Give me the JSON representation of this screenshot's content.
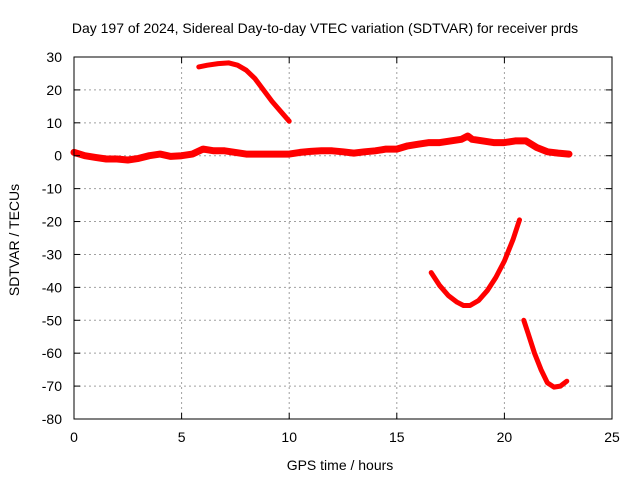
{
  "chart_data": {
    "type": "line",
    "title": "Day 197 of 2024, Sidereal Day-to-day VTEC variation (SDTVAR) for receiver prds",
    "xlabel": "GPS time / hours",
    "ylabel": "SDTVAR / TECUs",
    "xlim": [
      0,
      25
    ],
    "ylim": [
      -80,
      30
    ],
    "xticks": [
      0,
      5,
      10,
      15,
      20,
      25
    ],
    "yticks": [
      30,
      20,
      10,
      0,
      -10,
      -20,
      -30,
      -40,
      -50,
      -60,
      -70,
      -80
    ],
    "grid": true,
    "series": [
      {
        "name": "main-track",
        "color": "#ff0000",
        "x": [
          0,
          0.5,
          1,
          1.5,
          2,
          2.5,
          3,
          3.5,
          4,
          4.5,
          5,
          5.5,
          6,
          6.5,
          7,
          7.5,
          8,
          8.5,
          9,
          9.5,
          10,
          10.5,
          11,
          11.5,
          12,
          12.5,
          13,
          13.5,
          14,
          14.5,
          15,
          15.5,
          16,
          16.5,
          17,
          17.5,
          18,
          18.3,
          18.5,
          19,
          19.5,
          20,
          20.5,
          21,
          21.5,
          22,
          22.5,
          23
        ],
        "y": [
          1,
          0,
          -0.5,
          -1,
          -1,
          -1.3,
          -0.8,
          0,
          0.5,
          -0.2,
          0,
          0.5,
          2,
          1.5,
          1.5,
          1,
          0.5,
          0.5,
          0.5,
          0.5,
          0.5,
          1,
          1.3,
          1.5,
          1.5,
          1.2,
          0.8,
          1.2,
          1.5,
          2,
          2,
          3,
          3.5,
          4,
          4,
          4.5,
          5,
          6,
          5,
          4.5,
          4,
          4,
          4.5,
          4.5,
          2.5,
          1.2,
          0.8,
          0.5
        ]
      },
      {
        "name": "arc-early",
        "color": "#ff0000",
        "x": [
          5.8,
          6.2,
          6.7,
          7.2,
          7.6,
          8.0,
          8.4,
          8.8,
          9.2,
          9.6,
          10.0
        ],
        "y": [
          27,
          27.5,
          28,
          28.2,
          27.5,
          26,
          23.5,
          20,
          16.5,
          13.5,
          10.5
        ]
      },
      {
        "name": "arc-u-shape",
        "color": "#ff0000",
        "x": [
          16.6,
          17.0,
          17.4,
          17.8,
          18.1,
          18.4,
          18.8,
          19.2,
          19.6,
          20.0,
          20.4,
          20.7
        ],
        "y": [
          -35.5,
          -39.5,
          -42.5,
          -44.5,
          -45.5,
          -45.5,
          -44,
          -41,
          -37,
          -32,
          -25.5,
          -19.5
        ]
      },
      {
        "name": "arc-late",
        "color": "#ff0000",
        "x": [
          20.9,
          21.1,
          21.4,
          21.7,
          22.0,
          22.3,
          22.6,
          22.9
        ],
        "y": [
          -50,
          -54,
          -60,
          -65,
          -69,
          -70.3,
          -70,
          -68.5
        ]
      }
    ]
  }
}
